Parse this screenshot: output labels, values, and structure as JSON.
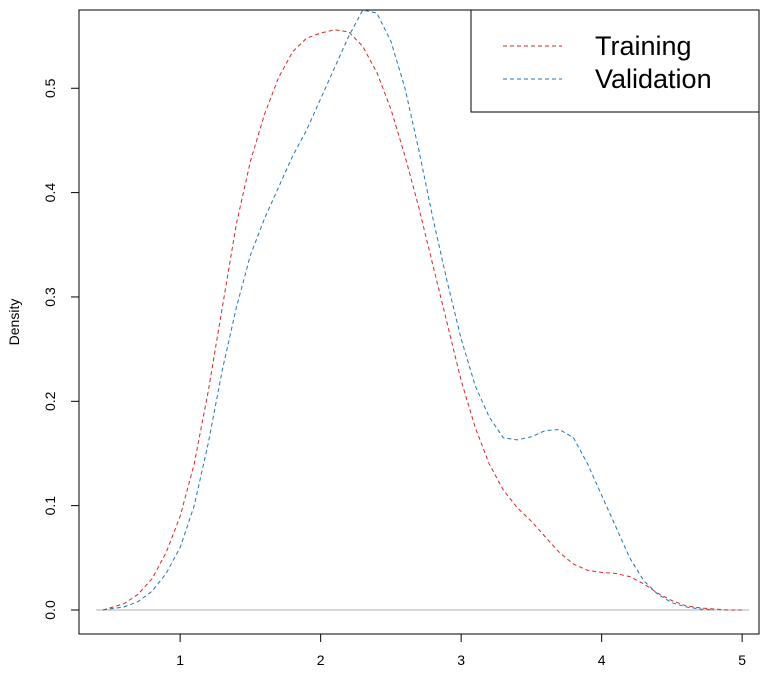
{
  "chart_data": {
    "type": "line",
    "title": "",
    "xlabel": "",
    "ylabel": "Density",
    "xlim": [
      0.28,
      5.12
    ],
    "ylim": [
      -0.023,
      0.575
    ],
    "x_ticks": [
      "1",
      "2",
      "3",
      "4",
      "5"
    ],
    "y_ticks": [
      "0.0",
      "0.1",
      "0.2",
      "0.3",
      "0.4",
      "0.5"
    ],
    "legend": {
      "position": "top-right",
      "entries": [
        "Training",
        "Validation"
      ]
    },
    "zero_line": true,
    "grid": false,
    "series": [
      {
        "name": "Training",
        "color": "#d62728",
        "line_style": "dashed",
        "x": [
          0.45,
          0.6,
          0.7,
          0.8,
          0.9,
          1.0,
          1.1,
          1.2,
          1.3,
          1.4,
          1.5,
          1.6,
          1.7,
          1.8,
          1.9,
          2.0,
          2.1,
          2.2,
          2.3,
          2.4,
          2.5,
          2.6,
          2.7,
          2.8,
          2.9,
          3.0,
          3.1,
          3.2,
          3.3,
          3.4,
          3.5,
          3.6,
          3.7,
          3.8,
          3.9,
          4.0,
          4.1,
          4.2,
          4.3,
          4.4,
          4.5,
          4.6,
          4.7,
          4.8,
          4.9,
          5.0
        ],
        "y": [
          0.0,
          0.006,
          0.015,
          0.03,
          0.055,
          0.09,
          0.14,
          0.21,
          0.29,
          0.37,
          0.43,
          0.475,
          0.51,
          0.535,
          0.548,
          0.553,
          0.556,
          0.554,
          0.54,
          0.515,
          0.48,
          0.435,
          0.385,
          0.33,
          0.275,
          0.22,
          0.175,
          0.14,
          0.115,
          0.098,
          0.085,
          0.07,
          0.055,
          0.044,
          0.038,
          0.036,
          0.035,
          0.032,
          0.025,
          0.016,
          0.009,
          0.004,
          0.002,
          0.001,
          0.0,
          0.0
        ]
      },
      {
        "name": "Validation",
        "color": "#1f77b4",
        "line_style": "dashed",
        "x": [
          0.45,
          0.6,
          0.7,
          0.8,
          0.9,
          1.0,
          1.1,
          1.2,
          1.3,
          1.4,
          1.5,
          1.6,
          1.7,
          1.8,
          1.9,
          2.0,
          2.1,
          2.2,
          2.3,
          2.4,
          2.5,
          2.6,
          2.7,
          2.8,
          2.9,
          3.0,
          3.1,
          3.2,
          3.3,
          3.4,
          3.5,
          3.6,
          3.7,
          3.8,
          3.9,
          4.0,
          4.1,
          4.2,
          4.3,
          4.4,
          4.5,
          4.6,
          4.7,
          4.8
        ],
        "y": [
          0.0,
          0.003,
          0.008,
          0.018,
          0.035,
          0.06,
          0.1,
          0.16,
          0.23,
          0.29,
          0.34,
          0.375,
          0.405,
          0.435,
          0.46,
          0.49,
          0.52,
          0.55,
          0.575,
          0.572,
          0.545,
          0.5,
          0.44,
          0.375,
          0.315,
          0.26,
          0.215,
          0.185,
          0.165,
          0.163,
          0.166,
          0.172,
          0.173,
          0.165,
          0.14,
          0.11,
          0.08,
          0.05,
          0.028,
          0.015,
          0.007,
          0.003,
          0.001,
          0.0
        ]
      }
    ]
  }
}
